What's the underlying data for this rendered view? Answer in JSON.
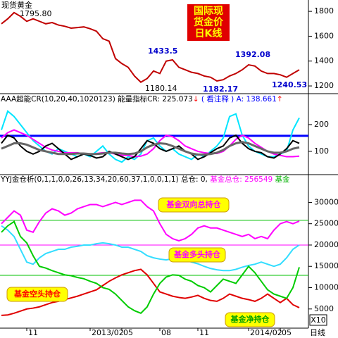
{
  "chart_data": [
    {
      "type": "line",
      "title": "现货黄金",
      "label_lines": [
        "国际现",
        "货金价",
        "日K线"
      ],
      "annotations": [
        "1795.80",
        "1433.5",
        "1392.08",
        "1180.14",
        "1182.17",
        "1240.53"
      ],
      "ylim": [
        1155,
        1880
      ],
      "yticks": [
        1200,
        1400,
        1600,
        1800
      ],
      "series": [
        {
          "name": "现货黄金",
          "color": "#c00000",
          "values": [
            1700,
            1740,
            1790,
            1760,
            1720,
            1740,
            1720,
            1700,
            1710,
            1690,
            1680,
            1665,
            1670,
            1675,
            1660,
            1640,
            1580,
            1560,
            1420,
            1380,
            1350,
            1280,
            1230,
            1260,
            1320,
            1300,
            1400,
            1410,
            1350,
            1330,
            1310,
            1300,
            1280,
            1270,
            1240,
            1250,
            1280,
            1300,
            1330,
            1370,
            1360,
            1320,
            1300,
            1300,
            1290,
            1270,
            1300,
            1330
          ]
        }
      ]
    },
    {
      "type": "line",
      "header": [
        {
          "text": "AAA超能CR(10,20,40,1020123)",
          "color": "#000000"
        },
        {
          "text": "  能量指标CR: 225.073",
          "color": "#000000"
        },
        {
          "text": "↓",
          "color": "#ff0000"
        },
        {
          "text": " ( 看注释 ) A: 138.661",
          "color": "#0000ff"
        },
        {
          "text": "↑",
          "color": "#ff0000"
        }
      ],
      "ylim": [
        21,
        276
      ],
      "yticks": [
        100,
        200
      ],
      "levels": [
        {
          "value": 158,
          "color": "#0000ff"
        }
      ],
      "series": [
        {
          "color": "#00e5ff",
          "values": [
            180,
            250,
            230,
            200,
            170,
            140,
            120,
            100,
            90,
            110,
            100,
            90,
            80,
            90,
            80,
            100,
            120,
            90,
            70,
            60,
            80,
            70,
            90,
            140,
            150,
            120,
            100,
            110,
            90,
            80,
            70,
            90,
            80,
            100,
            120,
            150,
            230,
            240,
            160,
            120,
            100,
            90,
            80,
            80,
            90,
            100,
            180,
            225
          ]
        },
        {
          "color": "#ff00ff",
          "values": [
            150,
            170,
            180,
            170,
            160,
            145,
            130,
            115,
            105,
            100,
            95,
            95,
            95,
            90,
            88,
            92,
            95,
            95,
            90,
            85,
            85,
            80,
            82,
            90,
            110,
            140,
            160,
            155,
            140,
            120,
            110,
            100,
            95,
            92,
            92,
            100,
            120,
            145,
            160,
            150,
            130,
            115,
            100,
            90,
            85,
            80,
            80,
            82
          ]
        },
        {
          "color": "#000000",
          "values": [
            130,
            160,
            150,
            120,
            100,
            90,
            100,
            120,
            130,
            110,
            90,
            70,
            80,
            90,
            85,
            75,
            80,
            100,
            90,
            80,
            70,
            80,
            110,
            140,
            130,
            110,
            100,
            110,
            120,
            100,
            90,
            70,
            80,
            95,
            110,
            120,
            150,
            160,
            130,
            110,
            100,
            95,
            80,
            75,
            90,
            110,
            140,
            130
          ]
        },
        {
          "color": "#666666",
          "values": [
            110,
            120,
            130,
            130,
            125,
            115,
            105,
            100,
            95,
            90,
            90,
            90,
            92,
            92,
            90,
            90,
            92,
            95,
            95,
            92,
            90,
            92,
            100,
            115,
            125,
            130,
            128,
            120,
            110,
            100,
            92,
            88,
            88,
            90,
            95,
            105,
            120,
            130,
            135,
            130,
            120,
            110,
            100,
            95,
            95,
            100,
            110,
            115
          ]
        }
      ]
    },
    {
      "type": "line",
      "header": [
        {
          "text": "YYJ金仓析(0,1,1,0,0,26,13,34,20,60,37,1,0,0,1,1)",
          "color": "#000000"
        },
        {
          "text": " 总仓: 0,",
          "color": "#000000"
        },
        {
          "text": " 基金总仓: 256549",
          "color": "#ff00ff"
        },
        {
          "text": " 基金",
          "color": "#00b000"
        }
      ],
      "ylim": [
        1000,
        34200
      ],
      "yticks": [
        5000,
        10000,
        15000,
        20000,
        25000,
        30000
      ],
      "levels": [
        {
          "value": 25800,
          "color": "#00c000"
        },
        {
          "value": 20000,
          "color": "#ff00ff"
        },
        {
          "value": 12900,
          "color": "#00c000"
        }
      ],
      "labels": [
        {
          "text": "基金双向总持仓",
          "color": "#ff00ff"
        },
        {
          "text": "基金多头持仓",
          "color": "#ff00ff"
        },
        {
          "text": "基金空头持仓",
          "color": "#ff0000"
        },
        {
          "text": "基金净持仓",
          "color": "#00a000"
        }
      ],
      "categories": [
        null,
        null,
        null,
        null,
        "11",
        null,
        null,
        null,
        null,
        null,
        null,
        null,
        null,
        null,
        "2013/02",
        null,
        null,
        null,
        null,
        "05",
        null,
        null,
        null,
        null,
        null,
        "08",
        null,
        null,
        null,
        null,
        null,
        "11",
        null,
        null,
        null,
        null,
        null,
        null,
        null,
        "2014/02",
        null,
        null,
        null,
        null,
        "05",
        null,
        null,
        null
      ],
      "series": [
        {
          "color": "#ff00ff",
          "values": [
            25000,
            26500,
            28000,
            27000,
            23500,
            23000,
            25500,
            27500,
            28500,
            28000,
            27000,
            27500,
            28500,
            29000,
            29500,
            29500,
            29000,
            29500,
            30000,
            29500,
            30000,
            30500,
            30500,
            29000,
            28000,
            25000,
            22500,
            21500,
            21000,
            21500,
            22500,
            24000,
            24500,
            24000,
            24000,
            23500,
            23000,
            22500,
            22000,
            22500,
            21500,
            22000,
            21500,
            23500,
            25000,
            25500,
            25000,
            25600
          ]
        },
        {
          "color": "#33ddff",
          "values": [
            24500,
            23500,
            22000,
            19000,
            16000,
            15500,
            17000,
            18000,
            18500,
            19000,
            19000,
            19500,
            19700,
            20000,
            20000,
            20300,
            20500,
            20300,
            20000,
            19500,
            19500,
            19000,
            18500,
            17500,
            17000,
            16700,
            16500,
            16800,
            17000,
            16500,
            16000,
            15600,
            15000,
            14500,
            14200,
            14000,
            14000,
            14300,
            14800,
            15200,
            15500,
            16000,
            15500,
            15000,
            15500,
            17000,
            19000,
            20000
          ]
        },
        {
          "color": "#e00000",
          "values": [
            3500,
            3600,
            4000,
            4500,
            5000,
            5200,
            5500,
            6000,
            6500,
            6800,
            7200,
            7600,
            8000,
            8500,
            9000,
            9500,
            10500,
            11500,
            12300,
            13000,
            13500,
            14000,
            14300,
            13000,
            11000,
            9000,
            8500,
            8000,
            7700,
            7500,
            7800,
            8200,
            7500,
            7000,
            6800,
            7500,
            8500,
            8000,
            7500,
            7200,
            6800,
            7500,
            8500,
            7500,
            6500,
            7500,
            6000,
            5300
          ]
        },
        {
          "color": "#00cc00",
          "values": [
            23000,
            24500,
            25500,
            22000,
            20500,
            17500,
            15000,
            14600,
            14000,
            13500,
            13000,
            12800,
            12400,
            12100,
            11500,
            11000,
            10000,
            9600,
            8500,
            7000,
            5500,
            4600,
            4000,
            5500,
            8500,
            11000,
            12500,
            13000,
            12900,
            12000,
            11500,
            10500,
            10000,
            9000,
            10500,
            12000,
            11500,
            11000,
            13000,
            15000,
            13500,
            11500,
            9500,
            8500,
            8000,
            7500,
            10000,
            14800
          ]
        }
      ]
    }
  ],
  "period": "日线",
  "scale_button": "X10"
}
